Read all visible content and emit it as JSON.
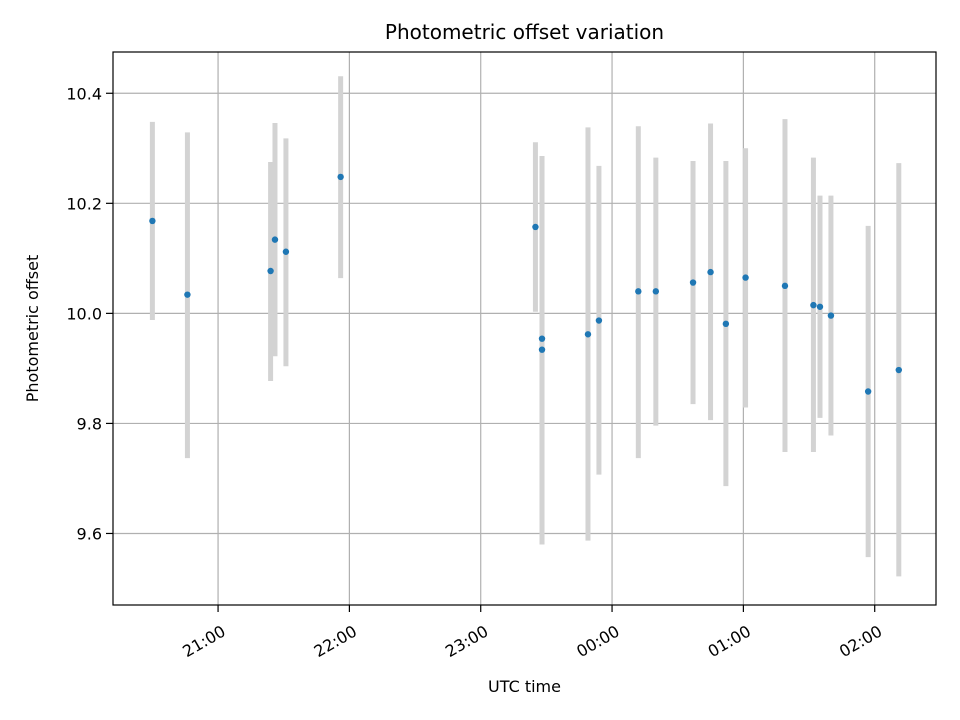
{
  "chart_data": {
    "type": "scatter",
    "title": "Photometric offset variation",
    "xlabel": "UTC time",
    "ylabel": "Photometric offset",
    "x_axis_type": "time",
    "x_start_date": "2000-01-01",
    "xlim": [
      "2000-01-01T20:12:00",
      "2000-01-02T02:28:00"
    ],
    "ylim": [
      9.47,
      10.475
    ],
    "x_ticks": [
      {
        "value": "2000-01-01T21:00",
        "label": "21:00"
      },
      {
        "value": "2000-01-01T22:00",
        "label": "22:00"
      },
      {
        "value": "2000-01-01T23:00",
        "label": "23:00"
      },
      {
        "value": "2000-01-02T00:00",
        "label": "00:00"
      },
      {
        "value": "2000-01-02T01:00",
        "label": "01:00"
      },
      {
        "value": "2000-01-02T02:00",
        "label": "02:00"
      }
    ],
    "y_ticks": [
      9.6,
      9.8,
      10.0,
      10.2,
      10.4
    ],
    "grid": true,
    "point_color": "#1f77b4",
    "errorbar_color": "#d3d3d3",
    "points": [
      {
        "x": "2000-01-01T20:30",
        "y": 10.168,
        "ylow": 9.988,
        "yhigh": 10.348
      },
      {
        "x": "2000-01-01T20:46",
        "y": 10.034,
        "ylow": 9.737,
        "yhigh": 10.329
      },
      {
        "x": "2000-01-01T21:24",
        "y": 10.077,
        "ylow": 9.877,
        "yhigh": 10.275
      },
      {
        "x": "2000-01-01T21:26",
        "y": 10.134,
        "ylow": 9.922,
        "yhigh": 10.346
      },
      {
        "x": "2000-01-01T21:31",
        "y": 10.112,
        "ylow": 9.904,
        "yhigh": 10.318
      },
      {
        "x": "2000-01-01T21:56",
        "y": 10.248,
        "ylow": 10.064,
        "yhigh": 10.431
      },
      {
        "x": "2000-01-01T23:25",
        "y": 10.157,
        "ylow": 10.003,
        "yhigh": 10.311
      },
      {
        "x": "2000-01-01T23:28",
        "y": 9.954,
        "ylow": 9.623,
        "yhigh": 10.286
      },
      {
        "x": "2000-01-01T23:28",
        "y": 9.934,
        "ylow": 9.58,
        "yhigh": 10.286
      },
      {
        "x": "2000-01-01T23:49",
        "y": 9.962,
        "ylow": 9.587,
        "yhigh": 10.338
      },
      {
        "x": "2000-01-01T23:54",
        "y": 9.987,
        "ylow": 9.707,
        "yhigh": 10.268
      },
      {
        "x": "2000-01-02T00:12",
        "y": 10.04,
        "ylow": 9.737,
        "yhigh": 10.34
      },
      {
        "x": "2000-01-02T00:20",
        "y": 10.04,
        "ylow": 9.796,
        "yhigh": 10.283
      },
      {
        "x": "2000-01-02T00:37",
        "y": 10.056,
        "ylow": 9.835,
        "yhigh": 10.277
      },
      {
        "x": "2000-01-02T00:45",
        "y": 10.075,
        "ylow": 9.806,
        "yhigh": 10.345
      },
      {
        "x": "2000-01-02T00:52",
        "y": 9.981,
        "ylow": 9.686,
        "yhigh": 10.277
      },
      {
        "x": "2000-01-02T01:01",
        "y": 10.065,
        "ylow": 9.829,
        "yhigh": 10.3
      },
      {
        "x": "2000-01-02T01:19",
        "y": 10.05,
        "ylow": 9.748,
        "yhigh": 10.353
      },
      {
        "x": "2000-01-02T01:32",
        "y": 10.015,
        "ylow": 9.748,
        "yhigh": 10.283
      },
      {
        "x": "2000-01-02T01:35",
        "y": 10.012,
        "ylow": 9.81,
        "yhigh": 10.214
      },
      {
        "x": "2000-01-02T01:40",
        "y": 9.996,
        "ylow": 9.778,
        "yhigh": 10.214
      },
      {
        "x": "2000-01-02T01:57",
        "y": 9.858,
        "ylow": 9.557,
        "yhigh": 10.159
      },
      {
        "x": "2000-01-02T02:11",
        "y": 9.897,
        "ylow": 9.522,
        "yhigh": 10.273
      }
    ]
  }
}
